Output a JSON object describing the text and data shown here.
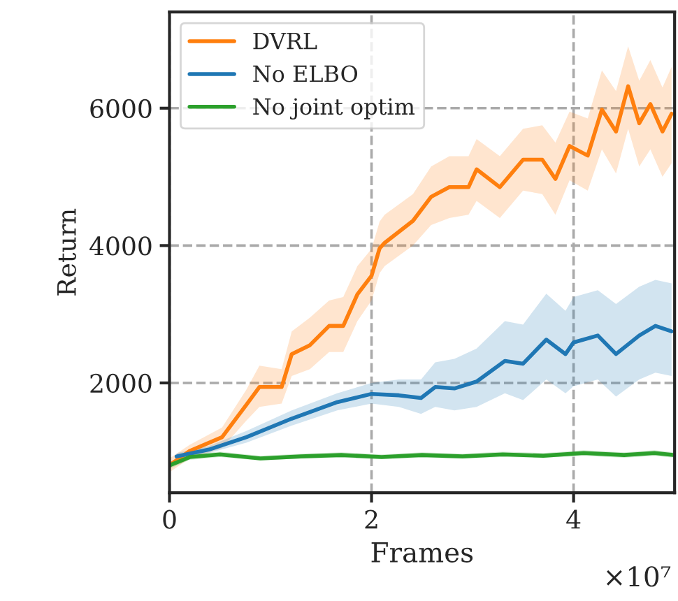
{
  "chart_data": {
    "type": "line",
    "xlabel": "Frames",
    "ylabel": "Return",
    "annotations": [
      "×10⁷"
    ],
    "xlim": [
      0,
      5
    ],
    "xticks": [
      0,
      2,
      4
    ],
    "ylim": [
      400,
      7400
    ],
    "yticks": [
      2000,
      4000,
      6000
    ],
    "grid": true,
    "legend": "top left",
    "series": [
      {
        "name": "DVRL",
        "color": "#ff7f0e",
        "x": [
          0,
          0.2,
          0.52,
          0.76,
          0.89,
          1.11,
          1.21,
          1.39,
          1.58,
          1.72,
          1.86,
          2.0,
          2.08,
          2.13,
          2.41,
          2.59,
          2.77,
          2.96,
          3.04,
          3.27,
          3.5,
          3.69,
          3.82,
          3.96,
          4.14,
          4.28,
          4.42,
          4.54,
          4.65,
          4.76,
          4.88,
          4.97
        ],
        "values": [
          800,
          1010,
          1210,
          1680,
          1940,
          1940,
          2420,
          2550,
          2830,
          2830,
          3290,
          3560,
          3960,
          4040,
          4360,
          4710,
          4850,
          4850,
          5110,
          4850,
          5250,
          5250,
          4970,
          5450,
          5310,
          5980,
          5660,
          6320,
          5780,
          6060,
          5660,
          5920
        ],
        "lower": [
          700,
          900,
          1050,
          1450,
          1650,
          1700,
          2100,
          2200,
          2450,
          2450,
          2900,
          3200,
          3600,
          3700,
          4000,
          4300,
          4400,
          4450,
          4650,
          4400,
          4800,
          4750,
          4450,
          4950,
          4800,
          5400,
          5050,
          5700,
          5150,
          5400,
          5000,
          5200
        ],
        "upper": [
          900,
          1100,
          1350,
          1900,
          2250,
          2200,
          2750,
          2950,
          3200,
          3250,
          3700,
          3950,
          4350,
          4450,
          4750,
          5150,
          5300,
          5300,
          5550,
          5300,
          5700,
          5750,
          5500,
          5950,
          5850,
          6550,
          6250,
          6900,
          6400,
          6700,
          6300,
          6600
        ]
      },
      {
        "name": "No ELBO",
        "color": "#1f77b4",
        "x": [
          0.07,
          0.39,
          0.76,
          1.21,
          1.66,
          2.0,
          2.27,
          2.49,
          2.63,
          2.82,
          3.04,
          3.32,
          3.5,
          3.73,
          3.92,
          4.0,
          4.24,
          4.42,
          4.65,
          4.81,
          4.97
        ],
        "values": [
          930,
          1030,
          1210,
          1480,
          1720,
          1840,
          1820,
          1780,
          1940,
          1920,
          2020,
          2320,
          2280,
          2630,
          2420,
          2590,
          2690,
          2420,
          2690,
          2830,
          2750
        ],
        "lower": [
          880,
          980,
          1130,
          1380,
          1600,
          1700,
          1650,
          1550,
          1650,
          1600,
          1650,
          1850,
          1750,
          2050,
          1850,
          1950,
          2050,
          1800,
          2050,
          2150,
          2100
        ],
        "upper": [
          980,
          1080,
          1300,
          1600,
          1850,
          2000,
          2050,
          2050,
          2300,
          2350,
          2500,
          2900,
          2850,
          3300,
          3050,
          3250,
          3350,
          3150,
          3400,
          3500,
          3450
        ]
      },
      {
        "name": "No joint optim",
        "color": "#2ca02c",
        "x": [
          0,
          0.2,
          0.5,
          0.9,
          1.3,
          1.7,
          2.1,
          2.5,
          2.9,
          3.3,
          3.7,
          4.1,
          4.5,
          4.8,
          5.0
        ],
        "values": [
          800,
          920,
          960,
          900,
          930,
          950,
          920,
          950,
          930,
          960,
          940,
          980,
          950,
          980,
          950
        ],
        "lower": [
          750,
          880,
          920,
          870,
          900,
          910,
          890,
          910,
          900,
          920,
          910,
          940,
          910,
          940,
          910
        ],
        "upper": [
          850,
          960,
          1000,
          940,
          970,
          990,
          960,
          990,
          970,
          1000,
          980,
          1020,
          990,
          1020,
          990
        ]
      }
    ]
  }
}
